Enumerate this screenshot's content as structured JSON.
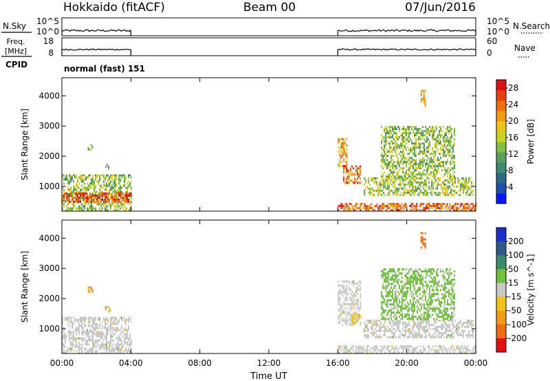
{
  "header": {
    "station": "Hokkaido (fitACF)",
    "beam": "Beam 00",
    "date": "07/Jun/2016"
  },
  "strips": {
    "nsky_label": "N.Sky",
    "nsky_ticks": [
      "10^5",
      "10^0"
    ],
    "freq_label_line1": "Freq.",
    "freq_label_line2": "[MHz]",
    "freq_ticks": [
      "18",
      "8"
    ],
    "nsearch_label": "N.Search",
    "nsearch_ticks": [
      "10^5",
      "10^0"
    ],
    "nave_label": "Nave",
    "nave_ticks": [
      "60",
      "0"
    ],
    "cpid_label": "CPID",
    "cpid_value": "normal (fast) 151"
  },
  "chart_data": [
    {
      "type": "heatmap",
      "panel": "power",
      "xlabel": "",
      "ylabel": "Slant Range [km]",
      "x_ticks": [
        "00:00",
        "04:00",
        "08:00",
        "12:00",
        "16:00",
        "20:00",
        "00:00"
      ],
      "y_ticks": [
        "1000",
        "2000",
        "3000",
        "4000"
      ],
      "xlim_hours": [
        0,
        24
      ],
      "ylim_km": [
        180,
        4600
      ],
      "data_gaps_hours": [
        [
          4.0,
          16.0
        ]
      ],
      "colorbar": {
        "label": "Power [dB]",
        "ticks": [
          "4",
          "8",
          "12",
          "16",
          "20",
          "24",
          "28"
        ],
        "range": [
          0,
          30
        ],
        "colors": [
          "#0018ff",
          "#1f4fb0",
          "#2b6a88",
          "#3f8a74",
          "#5aa05c",
          "#7fc23e",
          "#c8d41e",
          "#f2c414",
          "#f39a12",
          "#ef6c10",
          "#e8400e",
          "#e01010"
        ]
      },
      "echo_regions": [
        {
          "t_start": 0.0,
          "t_end": 4.0,
          "r_min": 180,
          "r_max": 1400,
          "value": 14
        },
        {
          "t_start": 0.0,
          "t_end": 4.0,
          "r_min": 520,
          "r_max": 800,
          "value": 26
        },
        {
          "t_start": 1.5,
          "t_end": 1.8,
          "r_min": 2250,
          "r_max": 2400,
          "value": 12
        },
        {
          "t_start": 2.5,
          "t_end": 2.8,
          "r_min": 1550,
          "r_max": 1750,
          "value": 10
        },
        {
          "t_start": 16.0,
          "t_end": 24.0,
          "r_min": 180,
          "r_max": 450,
          "value": 24
        },
        {
          "t_start": 16.0,
          "t_end": 16.5,
          "r_min": 1700,
          "r_max": 2600,
          "value": 22
        },
        {
          "t_start": 16.3,
          "t_end": 17.3,
          "r_min": 1100,
          "r_max": 1700,
          "value": 24
        },
        {
          "t_start": 17.5,
          "t_end": 23.8,
          "r_min": 750,
          "r_max": 1300,
          "value": 15
        },
        {
          "t_start": 18.5,
          "t_end": 22.8,
          "r_min": 1300,
          "r_max": 3000,
          "value": 14
        },
        {
          "t_start": 20.8,
          "t_end": 21.1,
          "r_min": 3700,
          "r_max": 4200,
          "value": 20
        }
      ]
    },
    {
      "type": "heatmap",
      "panel": "velocity",
      "xlabel": "Time UT",
      "ylabel": "Slant Range [km]",
      "x_ticks": [
        "00:00",
        "04:00",
        "08:00",
        "12:00",
        "16:00",
        "20:00",
        "00:00"
      ],
      "y_ticks": [
        "1000",
        "2000",
        "3000",
        "4000"
      ],
      "xlim_hours": [
        0,
        24
      ],
      "ylim_km": [
        180,
        4600
      ],
      "data_gaps_hours": [
        [
          4.0,
          16.0
        ]
      ],
      "colorbar": {
        "label": "Velocity [m s^-1]",
        "ticks": [
          "200",
          "100",
          "50",
          "15",
          "-15",
          "-50",
          "-100",
          "-200"
        ],
        "colors": [
          "#1a2fd0",
          "#2f5a8c",
          "#3f8a6a",
          "#6fc23a",
          "#c8c8c8",
          "#f2c414",
          "#f39a12",
          "#ef6c10",
          "#e01010"
        ]
      },
      "echo_regions": [
        {
          "t_start": 0.0,
          "t_end": 4.0,
          "r_min": 180,
          "r_max": 1400,
          "value": 0
        },
        {
          "t_start": 1.5,
          "t_end": 1.8,
          "r_min": 2250,
          "r_max": 2400,
          "value": -60
        },
        {
          "t_start": 2.5,
          "t_end": 2.8,
          "r_min": 1550,
          "r_max": 1750,
          "value": -40
        },
        {
          "t_start": 16.0,
          "t_end": 24.0,
          "r_min": 180,
          "r_max": 450,
          "value": 0
        },
        {
          "t_start": 16.0,
          "t_end": 17.3,
          "r_min": 1100,
          "r_max": 2600,
          "value": 0
        },
        {
          "t_start": 16.8,
          "t_end": 17.3,
          "r_min": 1200,
          "r_max": 1500,
          "value": -40
        },
        {
          "t_start": 17.5,
          "t_end": 23.8,
          "r_min": 750,
          "r_max": 1300,
          "value": 0
        },
        {
          "t_start": 18.5,
          "t_end": 22.8,
          "r_min": 1300,
          "r_max": 3000,
          "value": 30
        },
        {
          "t_start": 20.8,
          "t_end": 21.1,
          "r_min": 3700,
          "r_max": 4200,
          "value": -180
        }
      ]
    }
  ]
}
